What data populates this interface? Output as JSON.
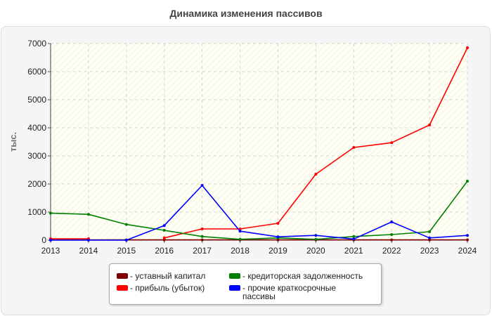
{
  "chart_data": {
    "type": "line",
    "title": "Динамика изменения пассивов",
    "ylabel": "тыс.",
    "xlabel": "",
    "x": [
      2013,
      2014,
      2015,
      2016,
      2017,
      2018,
      2019,
      2020,
      2021,
      2022,
      2023,
      2024
    ],
    "ylim": [
      0,
      7000
    ],
    "yticks": [
      0,
      1000,
      2000,
      3000,
      4000,
      5000,
      6000,
      7000
    ],
    "grid": true,
    "legend_position": "bottom",
    "series": [
      {
        "name": "- уставный капитал",
        "color": "#800000",
        "values": [
          10,
          10,
          10,
          10,
          10,
          10,
          10,
          10,
          10,
          10,
          10,
          10
        ]
      },
      {
        "name": "- прибыль (убыток)",
        "color": "#ff0000",
        "values": [
          50,
          50,
          null,
          80,
          400,
          400,
          600,
          2350,
          3300,
          3470,
          4100,
          6850
        ]
      },
      {
        "name": "- кредиторская задолженность",
        "color": "#008000",
        "values": [
          960,
          920,
          560,
          350,
          130,
          30,
          80,
          30,
          130,
          200,
          300,
          2100
        ]
      },
      {
        "name": "- прочие краткосрочные пассивы",
        "color": "#0000ff",
        "values": [
          0,
          0,
          0,
          520,
          1950,
          320,
          120,
          170,
          40,
          650,
          80,
          170
        ]
      }
    ]
  }
}
